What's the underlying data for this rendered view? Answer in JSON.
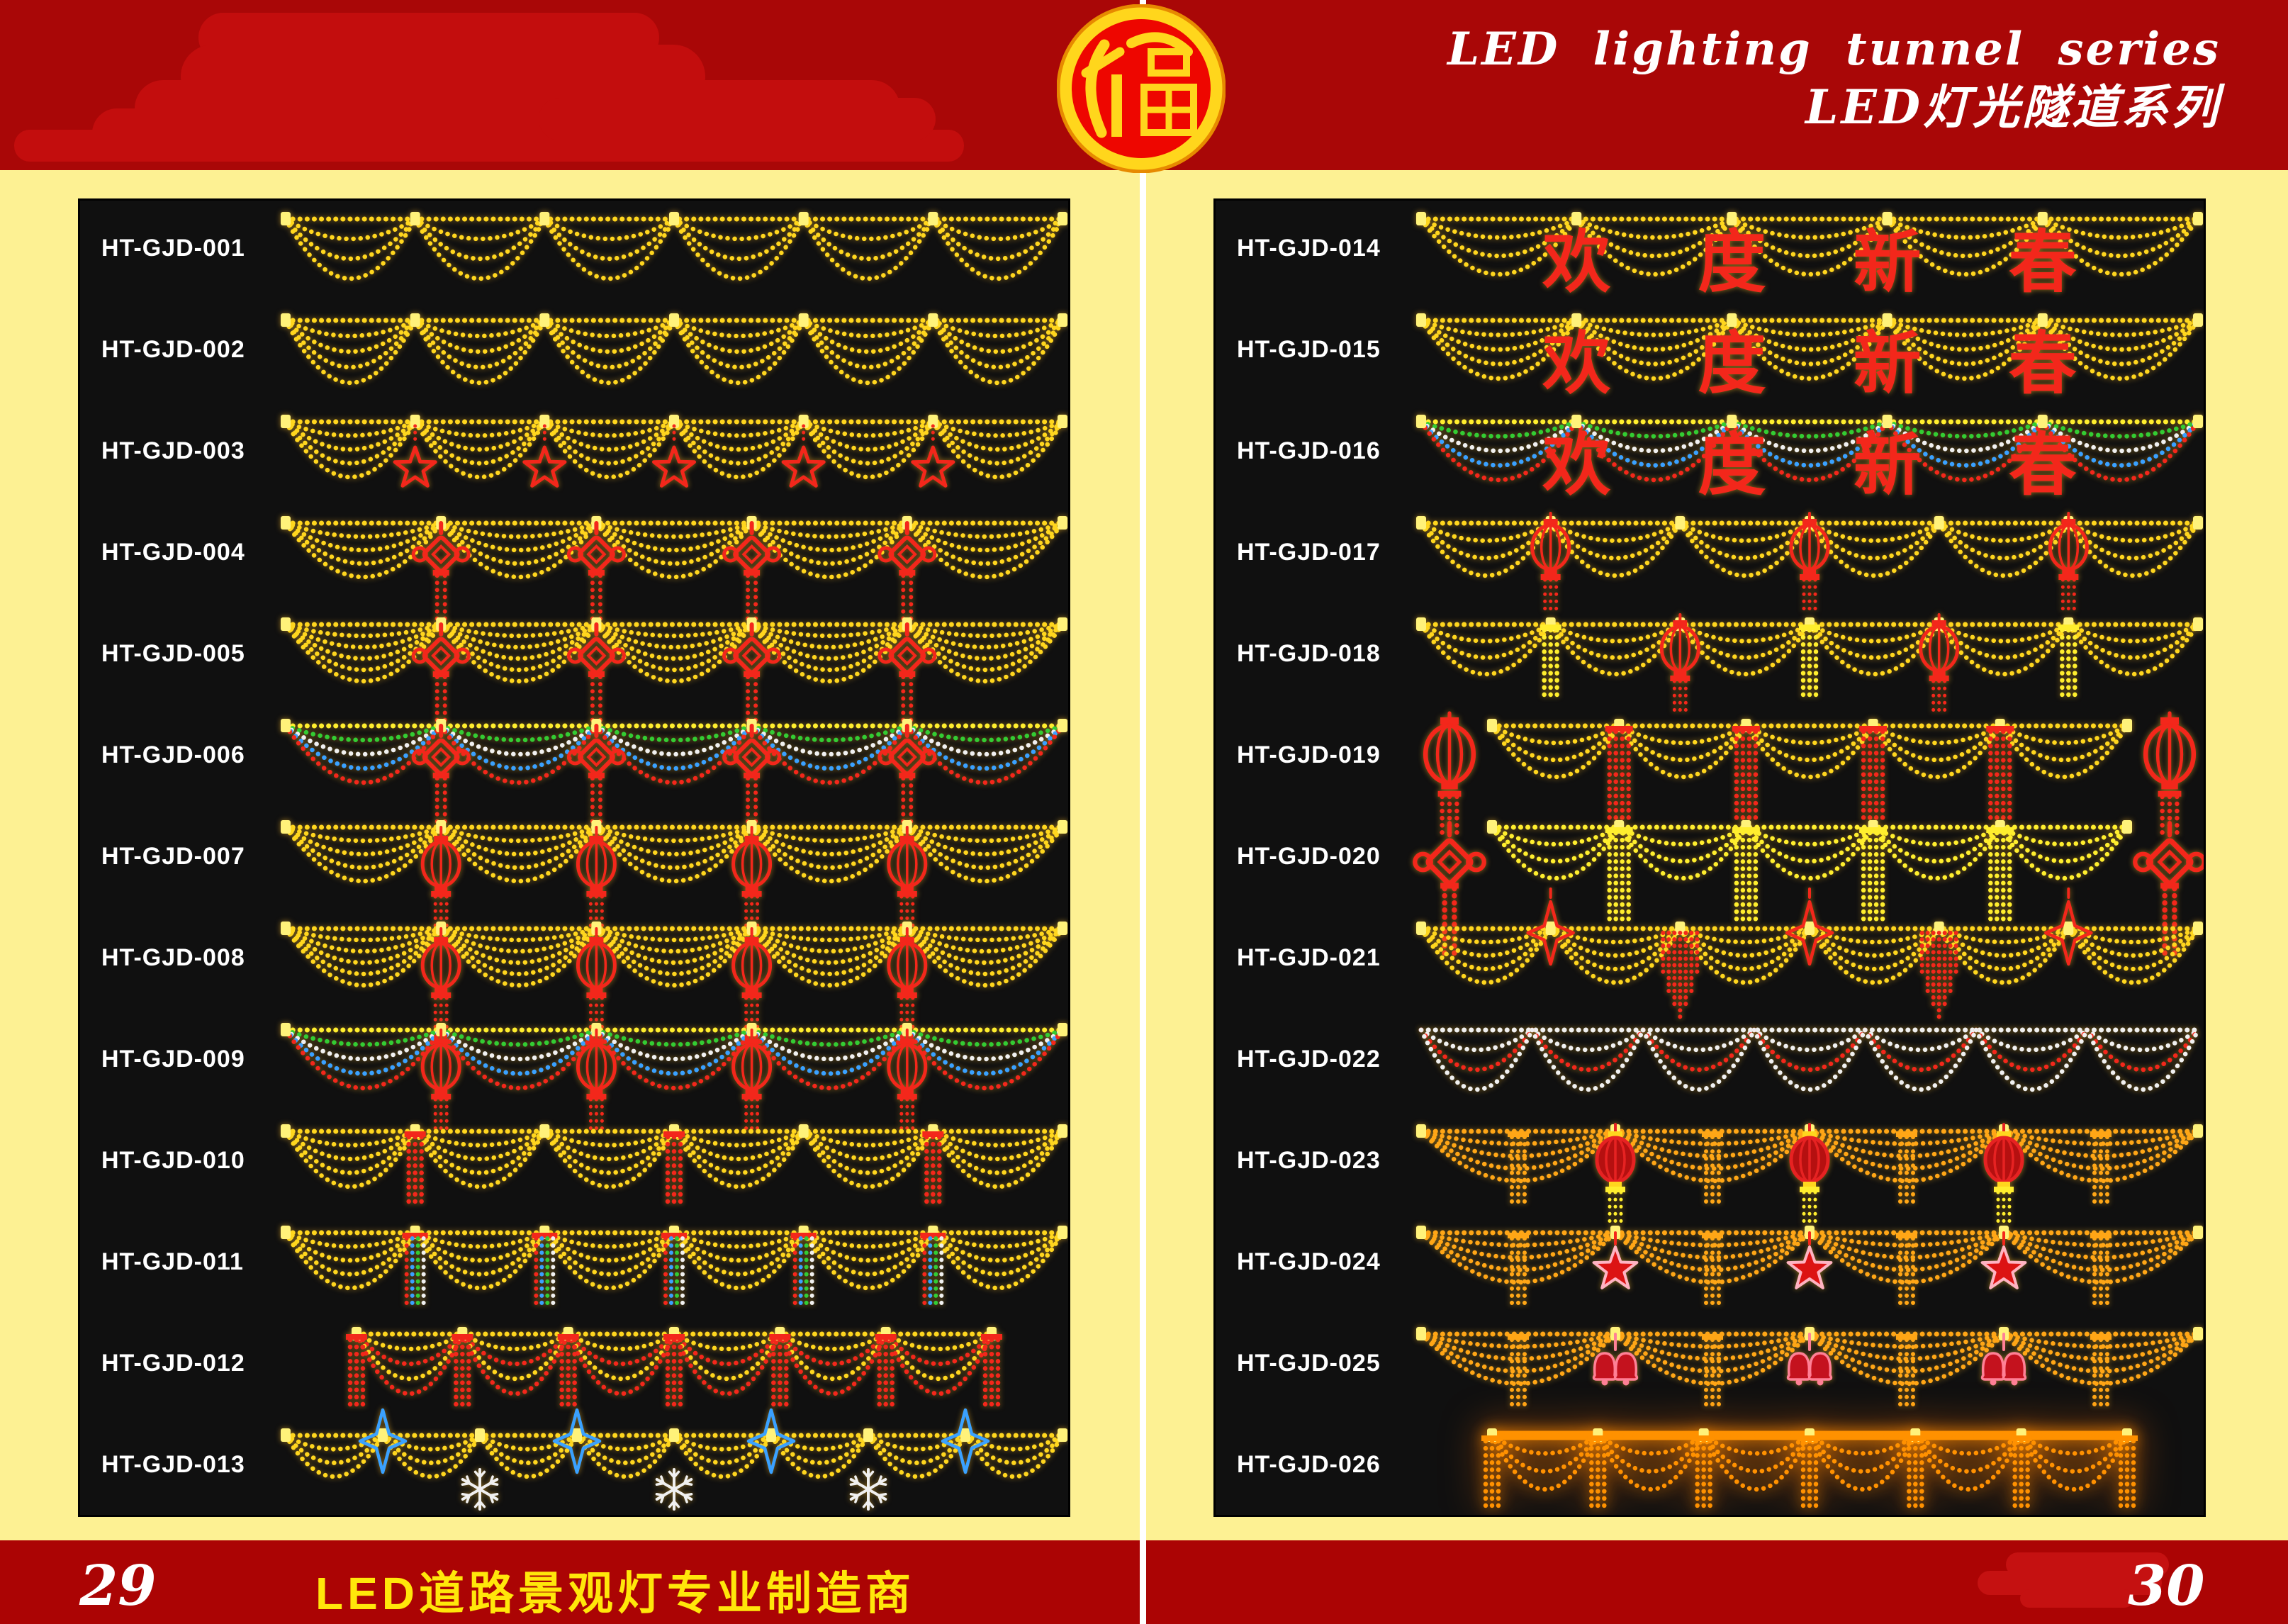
{
  "header": {
    "title_en": "LED lighting tunnel series",
    "title_zh": "LED灯光隧道系列"
  },
  "logo": {
    "symbol": "福"
  },
  "footer": {
    "page_number_left": "29",
    "page_number_right": "30",
    "slogan": "LED道路景观灯专业制造商"
  },
  "palette": {
    "gold": "#ffd61e",
    "bright": "#fff27a",
    "yellow": "#ffee2e",
    "red": "#f3271b",
    "green": "#33cc33",
    "white": "#f0f0f0",
    "blue": "#3aa1ff",
    "orange": "#ffa616",
    "deeporange": "#ff9100",
    "darkred": "#b51010",
    "pink": "#ffb3c2",
    "header_band": "#a90707",
    "footer_band": "#ab0404",
    "page_cream": "#fdf193",
    "panel_black": "#101010"
  },
  "panels": {
    "left": {
      "products": [
        {
          "code": "HT-GJD-001",
          "garland": {
            "sections": 6,
            "arcs": [
              "gold",
              "gold",
              "gold"
            ],
            "sag": 84
          }
        },
        {
          "code": "HT-GJD-002",
          "garland": {
            "sections": 6,
            "arcs": [
              "gold",
              "gold",
              "gold",
              "gold"
            ],
            "sag": 88
          }
        },
        {
          "code": "HT-GJD-003",
          "garland": {
            "sections": 6,
            "arcs": [
              "gold",
              "gold",
              "gold",
              "gold"
            ],
            "sag": 78,
            "junction_motifs": [
              "star5"
            ]
          }
        },
        {
          "code": "HT-GJD-004",
          "garland": {
            "sections": 5,
            "arcs": [
              "gold",
              "gold",
              "gold",
              "gold"
            ],
            "sag": 76,
            "junction_motifs": [
              "knot"
            ]
          }
        },
        {
          "code": "HT-GJD-005",
          "garland": {
            "sections": 5,
            "arcs": [
              "gold",
              "gold",
              "gold",
              "gold",
              "gold"
            ],
            "sag": 80,
            "junction_motifs": [
              "knot"
            ]
          }
        },
        {
          "code": "HT-GJD-006",
          "garland": {
            "sections": 5,
            "arcs": [
              "green",
              "white",
              "blue",
              "red"
            ],
            "sag": 80,
            "top": "yellow",
            "junction_motifs": [
              "knot"
            ]
          }
        },
        {
          "code": "HT-GJD-007",
          "garland": {
            "sections": 5,
            "arcs": [
              "gold",
              "gold",
              "gold",
              "gold"
            ],
            "sag": 76,
            "junction_motifs": [
              "lantern"
            ]
          }
        },
        {
          "code": "HT-GJD-008",
          "garland": {
            "sections": 5,
            "arcs": [
              "gold",
              "gold",
              "gold",
              "gold",
              "gold"
            ],
            "sag": 80,
            "junction_motifs": [
              "lantern"
            ]
          }
        },
        {
          "code": "HT-GJD-009",
          "garland": {
            "sections": 5,
            "arcs": [
              "green",
              "white",
              "blue",
              "red"
            ],
            "sag": 82,
            "top": "yellow",
            "junction_motifs": [
              "lantern"
            ]
          }
        },
        {
          "code": "HT-GJD-010",
          "garland": {
            "sections": 6,
            "arcs": [
              "gold",
              "gold",
              "gold",
              "gold"
            ],
            "sag": 78,
            "junction_motifs": [
              "tassel_red",
              null
            ]
          }
        },
        {
          "code": "HT-GJD-011",
          "garland": {
            "sections": 6,
            "arcs": [
              "gold",
              "gold",
              "gold",
              "gold"
            ],
            "sag": 78,
            "junction_motifs": [
              "tassel_multi"
            ]
          }
        },
        {
          "code": "HT-GJD-012",
          "garland": {
            "sections": 6,
            "arcs": [
              "gold",
              "red",
              "gold",
              "red"
            ],
            "sag": 84,
            "junction_motifs": [
              "tassel_red"
            ],
            "ends": "tassel_red"
          }
        },
        {
          "code": "HT-GJD-013",
          "garland": {
            "sections": 8,
            "arcs": [
              "gold",
              "gold",
              "gold"
            ],
            "sag": 58,
            "junction_motifs": [
              "star4_blue",
              "snowflake"
            ]
          }
        }
      ]
    },
    "right": {
      "products": [
        {
          "code": "HT-GJD-014",
          "garland": {
            "sections": 5,
            "arcs": [
              "gold",
              "gold",
              "gold"
            ],
            "sag": 78,
            "junction_motifs": [
              "char"
            ],
            "chars": [
              "欢",
              "度",
              "新",
              "春"
            ]
          }
        },
        {
          "code": "HT-GJD-015",
          "garland": {
            "sections": 5,
            "arcs": [
              "gold",
              "gold",
              "gold",
              "gold"
            ],
            "sag": 82,
            "junction_motifs": [
              "char"
            ],
            "chars": [
              "欢",
              "度",
              "新",
              "春"
            ]
          }
        },
        {
          "code": "HT-GJD-016",
          "garland": {
            "sections": 5,
            "arcs": [
              "green",
              "white",
              "blue",
              "red"
            ],
            "sag": 82,
            "top": "yellow",
            "junction_motifs": [
              "char"
            ],
            "chars": [
              "欢",
              "度",
              "新",
              "春"
            ]
          }
        },
        {
          "code": "HT-GJD-017",
          "garland": {
            "sections": 6,
            "arcs": [
              "gold",
              "gold",
              "gold"
            ],
            "sag": 74,
            "junction_motifs": [
              "lantern_high",
              null
            ]
          }
        },
        {
          "code": "HT-GJD-018",
          "garland": {
            "sections": 6,
            "arcs": [
              "gold",
              "gold",
              "gold"
            ],
            "sag": 70,
            "junction_motifs": [
              "tassel_yellow",
              "lantern_high"
            ]
          }
        },
        {
          "code": "HT-GJD-019",
          "garland": {
            "sections": 5,
            "arcs": [
              "gold",
              "gold",
              "gold"
            ],
            "sag": 72,
            "junction_motifs": [
              "tassel_red_long"
            ],
            "ends": "lantern"
          }
        },
        {
          "code": "HT-GJD-020",
          "garland": {
            "sections": 5,
            "arcs": [
              "yellow",
              "yellow",
              "yellow"
            ],
            "sag": 72,
            "top": "yellow",
            "junction_motifs": [
              "tassel_yellow_long"
            ],
            "ends": "knot"
          }
        },
        {
          "code": "HT-GJD-021",
          "garland": {
            "sections": 6,
            "arcs": [
              "gold",
              "gold",
              "gold",
              "gold"
            ],
            "sag": 76,
            "junction_motifs": [
              "star4_red",
              "fringe_red"
            ]
          }
        },
        {
          "code": "HT-GJD-022",
          "garland": {
            "sections": 7,
            "arcs": [
              "white",
              "red",
              "white"
            ],
            "sag": 84,
            "top": "white"
          }
        },
        {
          "code": "HT-GJD-023",
          "garland": {
            "sections": 4,
            "arcs": [
              "orange",
              "orange",
              "orange",
              "orange"
            ],
            "sag": 70,
            "top": "orange",
            "junction_motifs": [
              "lantern_ry"
            ],
            "center_tassel": "orange"
          }
        },
        {
          "code": "HT-GJD-024",
          "garland": {
            "sections": 4,
            "arcs": [
              "orange",
              "orange",
              "orange",
              "orange"
            ],
            "sag": 70,
            "top": "orange",
            "junction_motifs": [
              "medallion_star"
            ],
            "center_tassel": "orange"
          }
        },
        {
          "code": "HT-GJD-025",
          "garland": {
            "sections": 4,
            "arcs": [
              "orange",
              "orange",
              "orange",
              "orange"
            ],
            "sag": 70,
            "top": "orange",
            "junction_motifs": [
              "bells"
            ],
            "center_tassel": "orange"
          }
        },
        {
          "code": "HT-GJD-026",
          "garland": {
            "sections": 6,
            "arcs": [
              "deeporange",
              "deeporange",
              "deeporange"
            ],
            "sag": 76,
            "top": "deeporange",
            "top_thick": true,
            "junction_motifs": [
              "tassel_orange"
            ],
            "ends": "tassel_orange",
            "glow": "strong"
          }
        }
      ]
    }
  }
}
